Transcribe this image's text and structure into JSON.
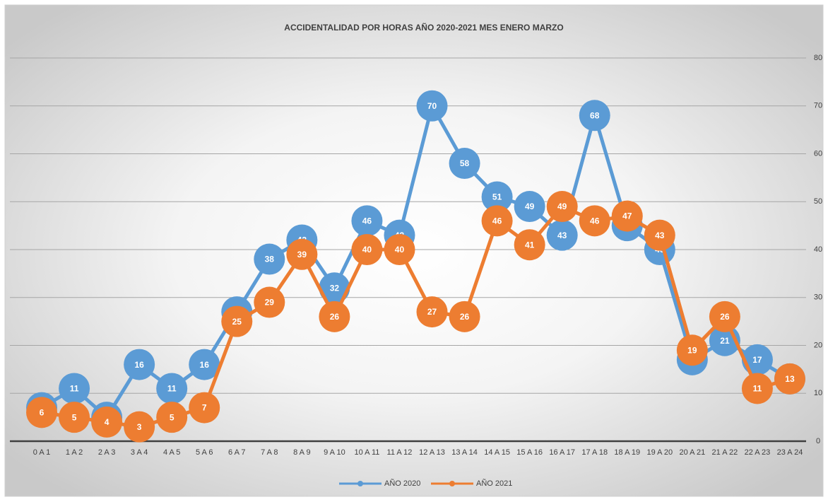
{
  "chart_data": {
    "type": "line",
    "title": "ACCIDENTALIDAD POR HORAS AÑO 2020-2021 MES  ENERO MARZO",
    "categories": [
      "0 A 1",
      "1 A 2",
      "2 A 3",
      "3 A 4",
      "4 A 5",
      "5 A 6",
      "6 A 7",
      "7 A 8",
      "8 A 9",
      "9 A 10",
      "10 A 11",
      "11 A 12",
      "12 A 13",
      "13 A 14",
      "14 A 15",
      "15 A 16",
      "16 A 17",
      "17 A 18",
      "18 A 19",
      "19 A 20",
      "20 A 21",
      "21 A 22",
      "22 A 23",
      "23 A 24"
    ],
    "series": [
      {
        "name": "AÑO 2020",
        "color": "#5b9bd5",
        "values": [
          7,
          11,
          5,
          16,
          11,
          16,
          27,
          38,
          42,
          32,
          46,
          43,
          70,
          58,
          51,
          49,
          43,
          68,
          45,
          40,
          17,
          21,
          17,
          13
        ]
      },
      {
        "name": "AÑO 2021",
        "color": "#ed7d31",
        "values": [
          6,
          5,
          4,
          3,
          5,
          7,
          25,
          29,
          39,
          26,
          40,
          40,
          27,
          26,
          46,
          41,
          49,
          46,
          47,
          43,
          19,
          26,
          11,
          13
        ]
      }
    ],
    "ylim": [
      0,
      80
    ],
    "yticks": [
      0,
      10,
      20,
      30,
      40,
      50,
      60,
      70,
      80
    ],
    "grid": true,
    "legend": "bottom"
  }
}
